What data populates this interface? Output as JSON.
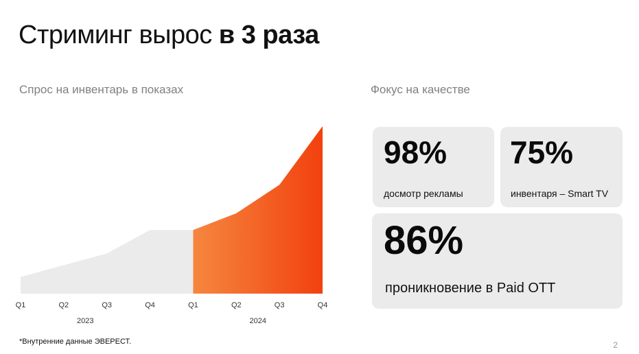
{
  "title": {
    "regular": "Стриминг вырос ",
    "bold": "в 3 раза"
  },
  "left_label": "Спрос на инвентарь в показах",
  "right_label": "Фокус на качестве",
  "chart_data": {
    "type": "area",
    "categories": [
      "Q1",
      "Q2",
      "Q3",
      "Q4",
      "Q1",
      "Q2",
      "Q3",
      "Q4"
    ],
    "groups": [
      {
        "label": "2023",
        "from": 0,
        "to": 3
      },
      {
        "label": "2024",
        "from": 4,
        "to": 7
      }
    ],
    "values": [
      10,
      17,
      24,
      38,
      38,
      48,
      65,
      100
    ],
    "highlight_from": 4,
    "ylim": [
      0,
      100
    ],
    "grid": false,
    "colors": {
      "base": "#ebebeb",
      "highlight_start": "#f5873f",
      "highlight_end": "#f2410e"
    }
  },
  "stats": [
    {
      "value": "98%",
      "label": "досмотр рекламы"
    },
    {
      "value": "75%",
      "label": "инвентаря – Smart TV"
    },
    {
      "value": "86%",
      "label": "проникновение в Paid OTT"
    }
  ],
  "footnote": "*Внутренние данные ЭВЕРЕСТ.",
  "page_number": "2"
}
